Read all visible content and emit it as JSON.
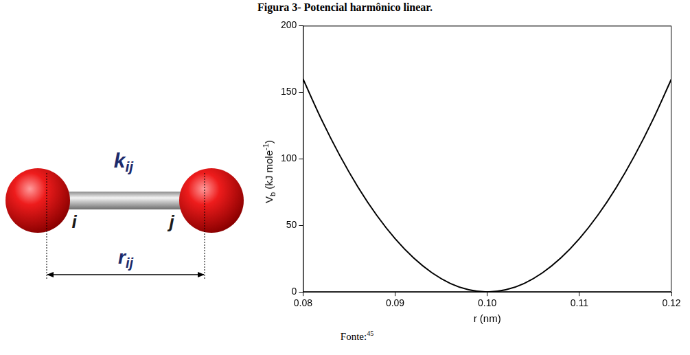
{
  "figure_title": "Figura 3- Potencial harmônico linear.",
  "diagram": {
    "bond_label": {
      "text": "k",
      "sub": "ij"
    },
    "atom_i": "i",
    "atom_j": "j",
    "distance_label": {
      "text": "r",
      "sub": "ij"
    }
  },
  "chart_data": {
    "type": "line",
    "x_label": "r (nm)",
    "y_label": [
      "V",
      {
        "sub": "b"
      },
      " (kJ mole",
      {
        "sup": "-1"
      },
      ")"
    ],
    "x": [
      0.08,
      0.082,
      0.084,
      0.086,
      0.088,
      0.09,
      0.092,
      0.094,
      0.096,
      0.098,
      0.1,
      0.102,
      0.104,
      0.106,
      0.108,
      0.11,
      0.112,
      0.114,
      0.116,
      0.118,
      0.12
    ],
    "values": [
      160,
      129.6,
      102.4,
      78.4,
      57.6,
      40,
      25.6,
      14.4,
      6.4,
      1.6,
      0,
      1.6,
      6.4,
      14.4,
      25.6,
      40,
      57.6,
      78.4,
      102.4,
      129.6,
      160
    ],
    "color": "#000000",
    "xlim": [
      0.08,
      0.12
    ],
    "xticks": [
      0.08,
      0.09,
      {
        "value": 0.1,
        "label": "0.10"
      },
      0.11,
      0.12
    ],
    "ylim": [
      0,
      200
    ],
    "yticks": [
      0,
      50,
      100,
      150,
      200
    ],
    "grid": false
  },
  "source": {
    "text": "Fonte:",
    "sup": "45"
  }
}
